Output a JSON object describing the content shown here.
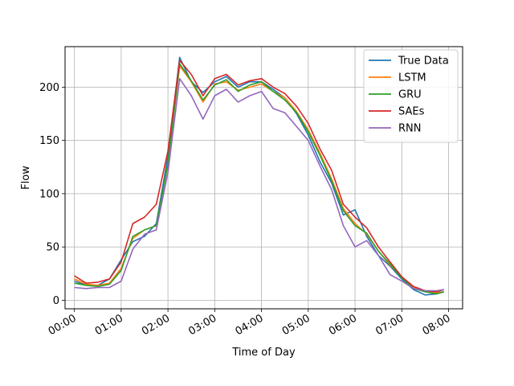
{
  "chart_data": {
    "type": "line",
    "title": "",
    "xlabel": "Time of Day",
    "ylabel": "Flow",
    "xlim": [
      -0.2,
      8.3
    ],
    "ylim": [
      -8,
      238
    ],
    "x_ticks": [
      {
        "value": 0,
        "label": "00:00"
      },
      {
        "value": 1,
        "label": "01:00"
      },
      {
        "value": 2,
        "label": "02:00"
      },
      {
        "value": 3,
        "label": "03:00"
      },
      {
        "value": 4,
        "label": "04:00"
      },
      {
        "value": 5,
        "label": "05:00"
      },
      {
        "value": 6,
        "label": "06:00"
      },
      {
        "value": 7,
        "label": "07:00"
      },
      {
        "value": 8,
        "label": "08:00"
      }
    ],
    "y_ticks": [
      {
        "value": 0,
        "label": "0"
      },
      {
        "value": 50,
        "label": "50"
      },
      {
        "value": 100,
        "label": "100"
      },
      {
        "value": 150,
        "label": "150"
      },
      {
        "value": 200,
        "label": "200"
      }
    ],
    "grid": true,
    "legend_position": "top-right",
    "x": [
      0,
      0.25,
      0.5,
      0.75,
      1.0,
      1.25,
      1.5,
      1.75,
      2.0,
      2.25,
      2.5,
      2.75,
      3.0,
      3.25,
      3.5,
      3.75,
      4.0,
      4.25,
      4.5,
      4.75,
      5.0,
      5.25,
      5.5,
      5.75,
      6.0,
      6.25,
      6.5,
      6.75,
      7.0,
      7.25,
      7.5,
      7.75,
      7.9
    ],
    "series": [
      {
        "name": "True Data",
        "color": "#1f77b4",
        "values": [
          18,
          14,
          14,
          20,
          38,
          55,
          60,
          72,
          135,
          228,
          205,
          195,
          205,
          210,
          200,
          205,
          205,
          198,
          190,
          175,
          155,
          130,
          110,
          80,
          85,
          60,
          42,
          32,
          20,
          10,
          5,
          6,
          8
        ]
      },
      {
        "name": "LSTM",
        "color": "#ff7f0e",
        "values": [
          20,
          15,
          14,
          16,
          30,
          58,
          66,
          70,
          128,
          220,
          205,
          186,
          203,
          205,
          197,
          200,
          203,
          196,
          190,
          177,
          160,
          138,
          114,
          86,
          72,
          62,
          46,
          33,
          22,
          12,
          8,
          7,
          8
        ]
      },
      {
        "name": "GRU",
        "color": "#2ca02c",
        "values": [
          16,
          14,
          13,
          15,
          28,
          60,
          66,
          70,
          128,
          222,
          206,
          188,
          202,
          207,
          196,
          202,
          205,
          196,
          188,
          176,
          158,
          136,
          112,
          84,
          70,
          63,
          46,
          34,
          21,
          11,
          8,
          6,
          8
        ]
      },
      {
        "name": "SAEs",
        "color": "#d62728",
        "values": [
          23,
          16,
          17,
          20,
          36,
          72,
          78,
          90,
          140,
          225,
          212,
          192,
          208,
          212,
          202,
          206,
          208,
          200,
          194,
          182,
          166,
          142,
          122,
          90,
          78,
          68,
          50,
          36,
          22,
          13,
          9,
          8,
          10
        ]
      },
      {
        "name": "RNN",
        "color": "#9467bd",
        "values": [
          12,
          11,
          12,
          12,
          18,
          48,
          62,
          66,
          120,
          208,
          192,
          170,
          192,
          198,
          186,
          192,
          196,
          180,
          176,
          163,
          150,
          126,
          104,
          70,
          50,
          56,
          42,
          24,
          18,
          11,
          9,
          9,
          10
        ]
      }
    ]
  }
}
